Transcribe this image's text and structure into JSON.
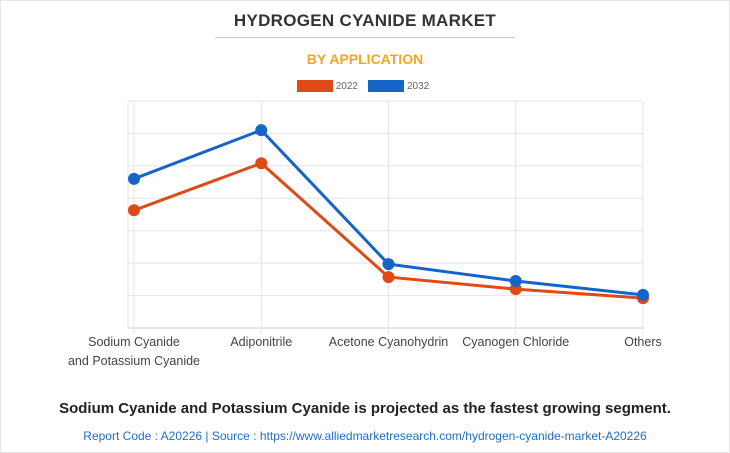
{
  "chart_data": {
    "type": "line",
    "title": "HYDROGEN CYANIDE MARKET",
    "subtitle": "BY APPLICATION",
    "categories": [
      [
        "Sodium Cyanide",
        "and Potassium Cyanide"
      ],
      [
        "Adiponitrile"
      ],
      [
        "Acetone Cyanohydrin"
      ],
      [
        "Cyanogen Chloride"
      ],
      [
        "Others"
      ]
    ],
    "series": [
      {
        "name": "2022",
        "color": "#e04a17",
        "values": [
          3.63,
          5.08,
          1.57,
          1.2,
          0.92
        ]
      },
      {
        "name": "2032",
        "color": "#1565c8",
        "values": [
          4.6,
          6.1,
          1.97,
          1.45,
          1.02
        ]
      }
    ],
    "ylim": [
      0,
      7
    ],
    "grid": true,
    "legend": "top-center",
    "xlabel": "",
    "ylabel": ""
  },
  "footer": {
    "headline": "Sodium Cyanide and Potassium Cyanide is projected as the fastest growing segment.",
    "source": "Report Code : A20226  |  Source : https://www.alliedmarketresearch.com/hydrogen-cyanide-market-A20226"
  }
}
